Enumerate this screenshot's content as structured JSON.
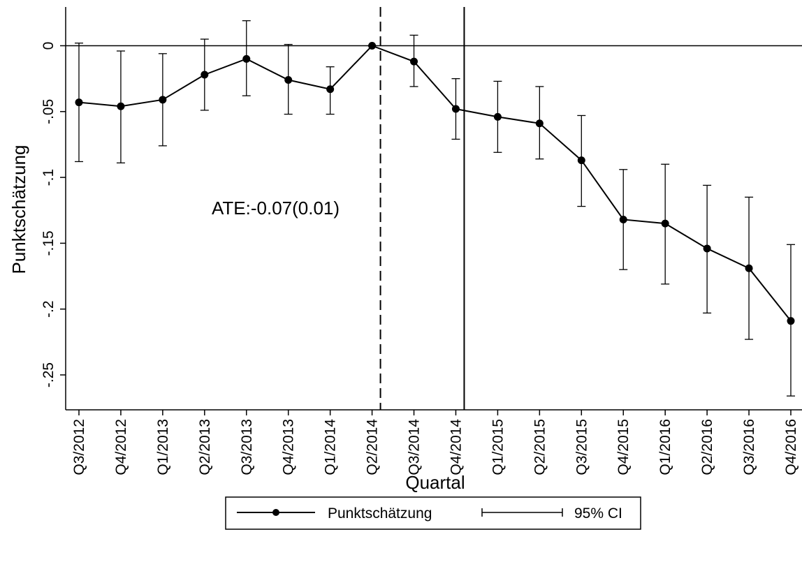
{
  "chart_data": {
    "type": "line",
    "title": "",
    "xlabel": "Quartal",
    "ylabel": "Punktschätzung",
    "categories": [
      "Q3/2012",
      "Q4/2012",
      "Q1/2013",
      "Q2/2013",
      "Q3/2013",
      "Q4/2013",
      "Q1/2014",
      "Q2/2014",
      "Q3/2014",
      "Q4/2014",
      "Q1/2015",
      "Q2/2015",
      "Q3/2015",
      "Q4/2015",
      "Q1/2016",
      "Q2/2016",
      "Q3/2016",
      "Q4/2016"
    ],
    "series": [
      {
        "name": "Punktschätzung",
        "values": [
          -0.043,
          -0.046,
          -0.041,
          -0.022,
          -0.01,
          -0.026,
          -0.033,
          0.0,
          -0.012,
          -0.048,
          -0.054,
          -0.059,
          -0.087,
          -0.132,
          -0.135,
          -0.154,
          -0.169,
          -0.209
        ],
        "ci_lower": [
          -0.088,
          -0.089,
          -0.076,
          -0.049,
          -0.038,
          -0.052,
          -0.052,
          0.0,
          -0.031,
          -0.071,
          -0.081,
          -0.086,
          -0.122,
          -0.17,
          -0.181,
          -0.203,
          -0.223,
          -0.266
        ],
        "ci_upper": [
          0.002,
          -0.004,
          -0.006,
          0.005,
          0.019,
          0.001,
          -0.016,
          0.0,
          0.008,
          -0.025,
          -0.027,
          -0.031,
          -0.053,
          -0.094,
          -0.09,
          -0.106,
          -0.115,
          -0.151
        ]
      }
    ],
    "ci_name": "95% CI",
    "ylim": [
      -0.275,
      0.03
    ],
    "yticks": [
      0,
      -0.05,
      -0.1,
      -0.15,
      -0.2,
      -0.25
    ],
    "ytick_labels": [
      "0",
      "-.05",
      "-.1",
      "-.15",
      "-.2",
      "-.25"
    ],
    "reference_lines": {
      "horizontal_y": 0,
      "dashed_vertical_after": "Q2/2014",
      "solid_vertical_after": "Q4/2014"
    },
    "annotation": "ATE:-0.07(0.01)",
    "legend": {
      "position": "bottom",
      "entries": [
        "Punktschätzung",
        "95% CI"
      ]
    },
    "grid": false,
    "colors": {
      "line": "#000000",
      "background": "#ffffff"
    }
  }
}
